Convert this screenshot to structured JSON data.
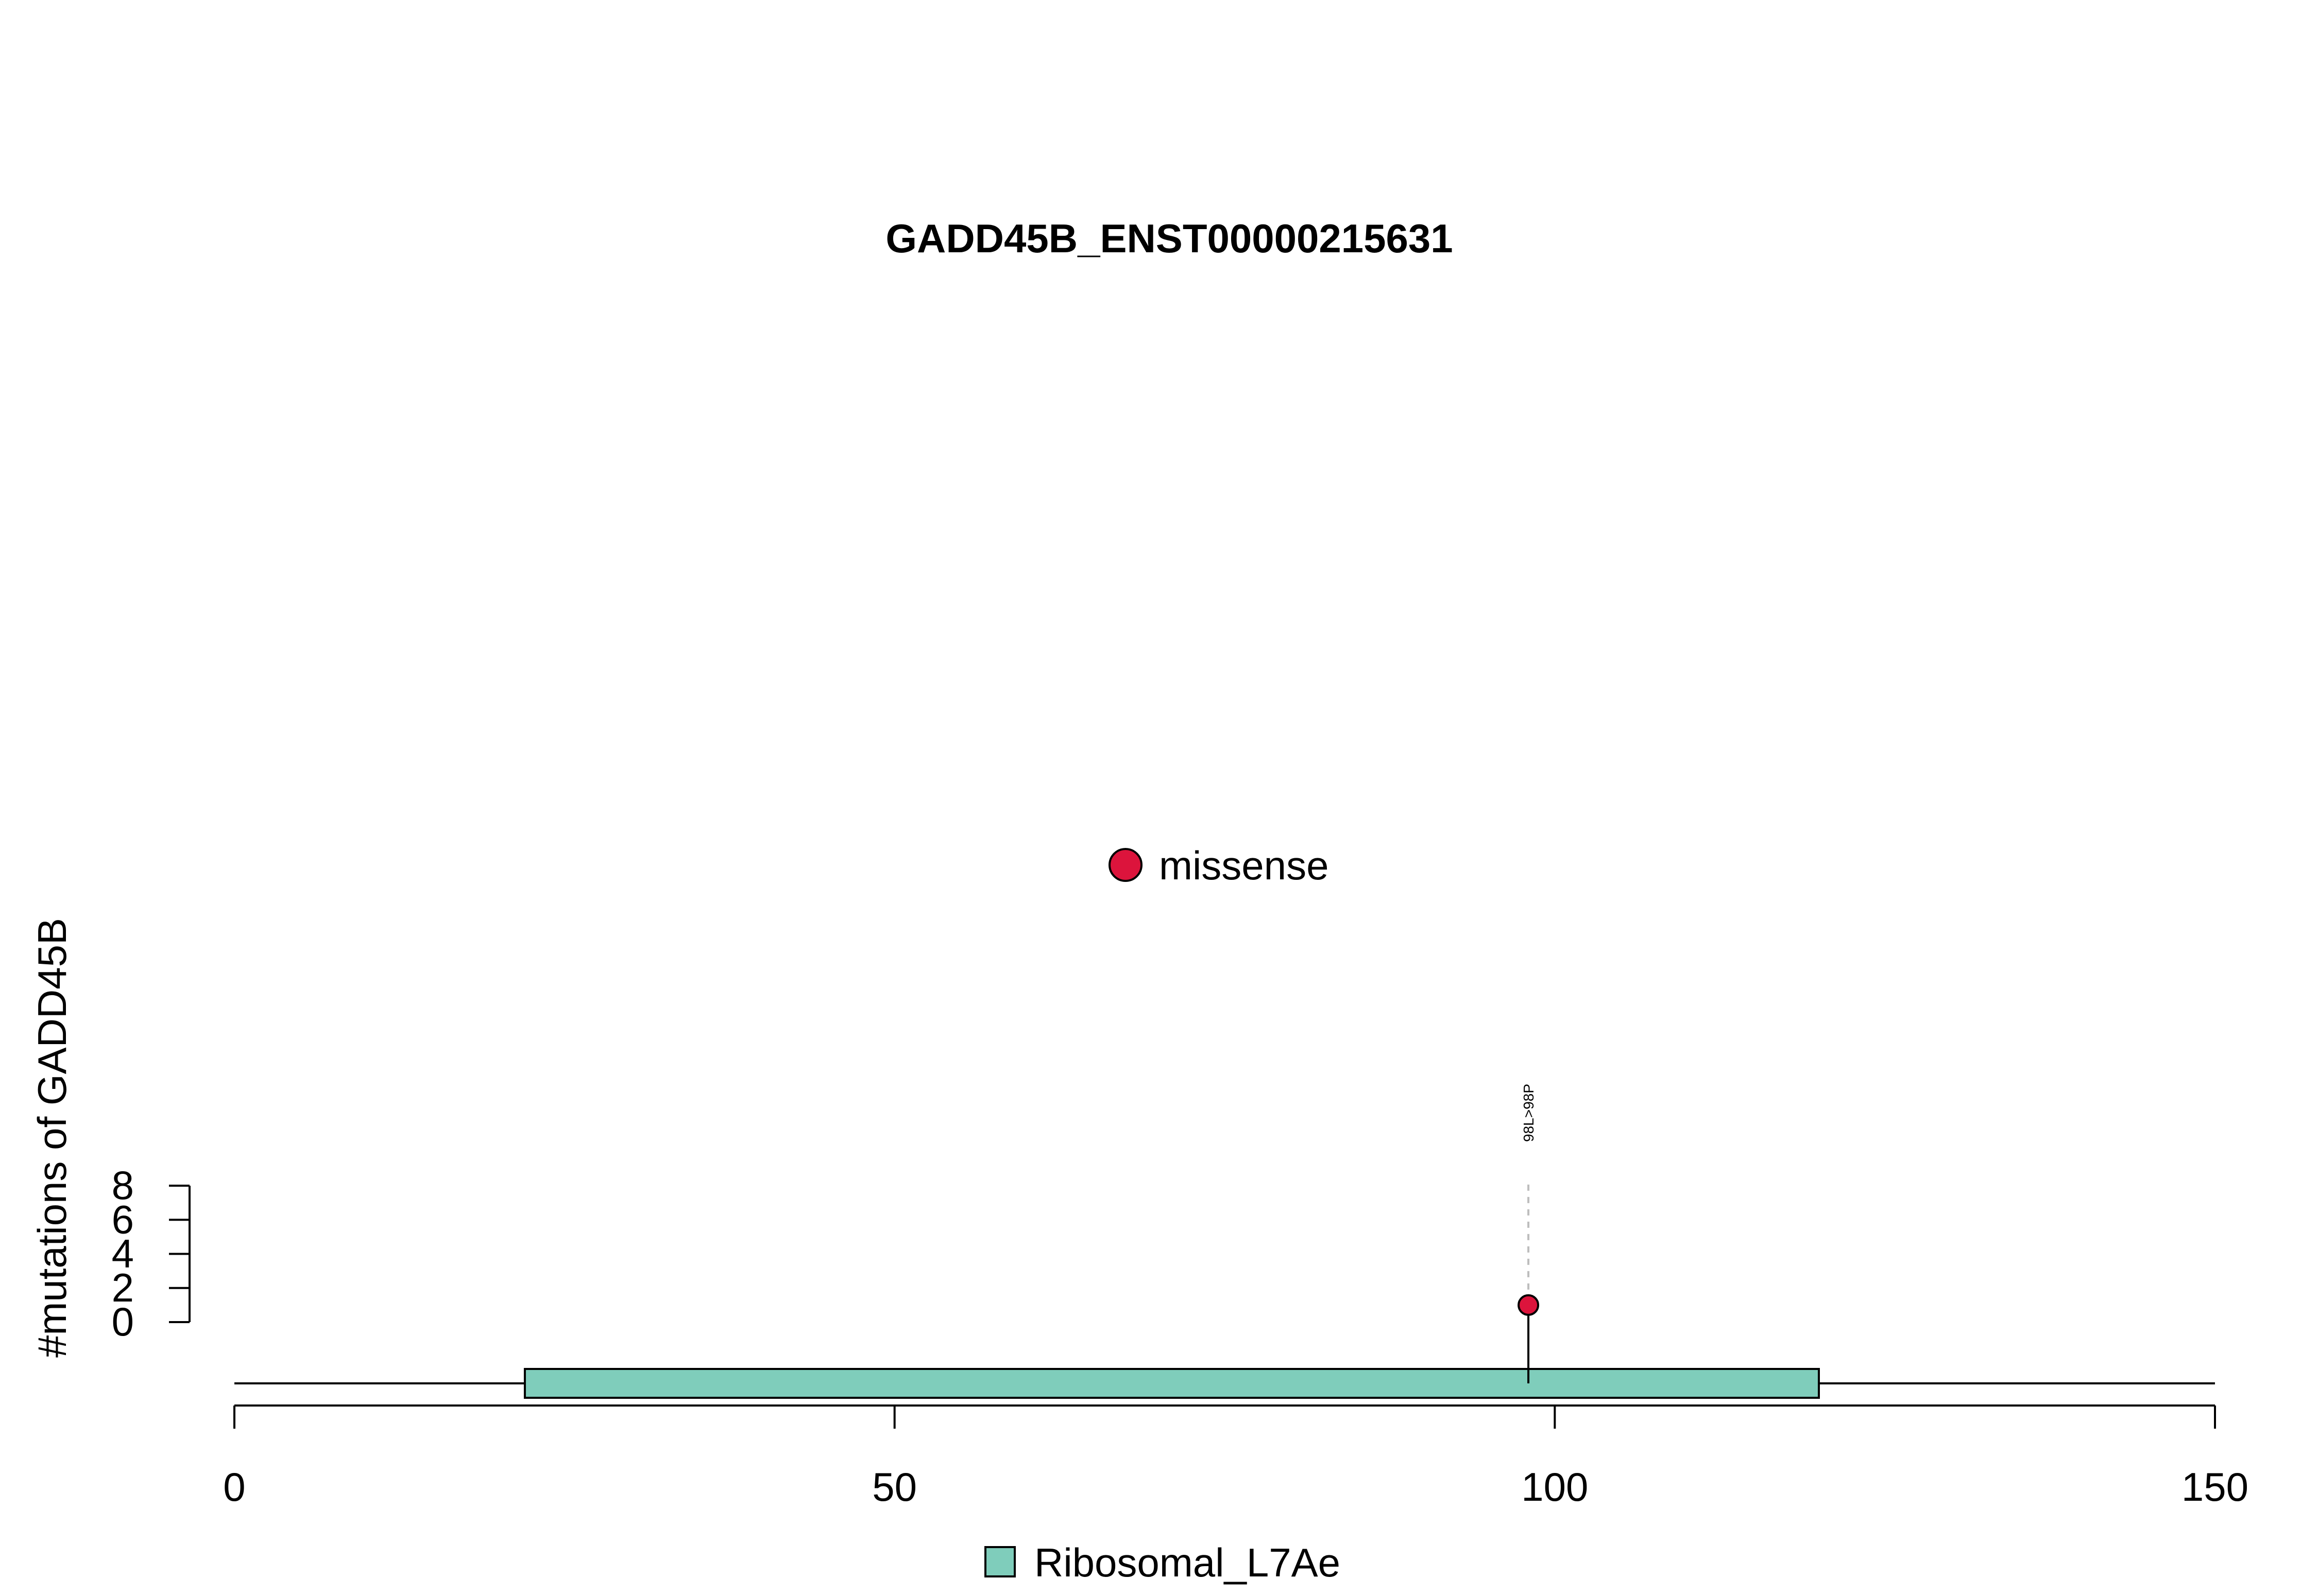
{
  "chart_data": {
    "type": "lollipop",
    "title": "GADD45B_ENST00000215631",
    "ylabel": "#mutations of GADD45B",
    "xlabel": "",
    "xlim": [
      0,
      150
    ],
    "x_ticks": [
      0,
      50,
      100,
      150
    ],
    "x_tick_labels": [
      "0",
      "50",
      "100",
      "150"
    ],
    "ylim": [
      0,
      8
    ],
    "y_ticks": [
      0,
      2,
      4,
      6,
      8
    ],
    "y_tick_labels": [
      "0",
      "2",
      "4",
      "6",
      "8"
    ],
    "protein_length": 150,
    "domains": [
      {
        "name": "Ribosomal_L7Ae",
        "start": 22,
        "end": 120,
        "color": "#7fcdbb"
      }
    ],
    "mutations": [
      {
        "position": 98,
        "count": 1,
        "label": "98L>98P",
        "type": "missense",
        "color": "#dc143c"
      }
    ],
    "legend": {
      "mutation_types": [
        {
          "name": "missense",
          "color": "#dc143c"
        }
      ],
      "domains": [
        {
          "name": "Ribosomal_L7Ae",
          "color": "#7fcdbb"
        }
      ]
    }
  }
}
